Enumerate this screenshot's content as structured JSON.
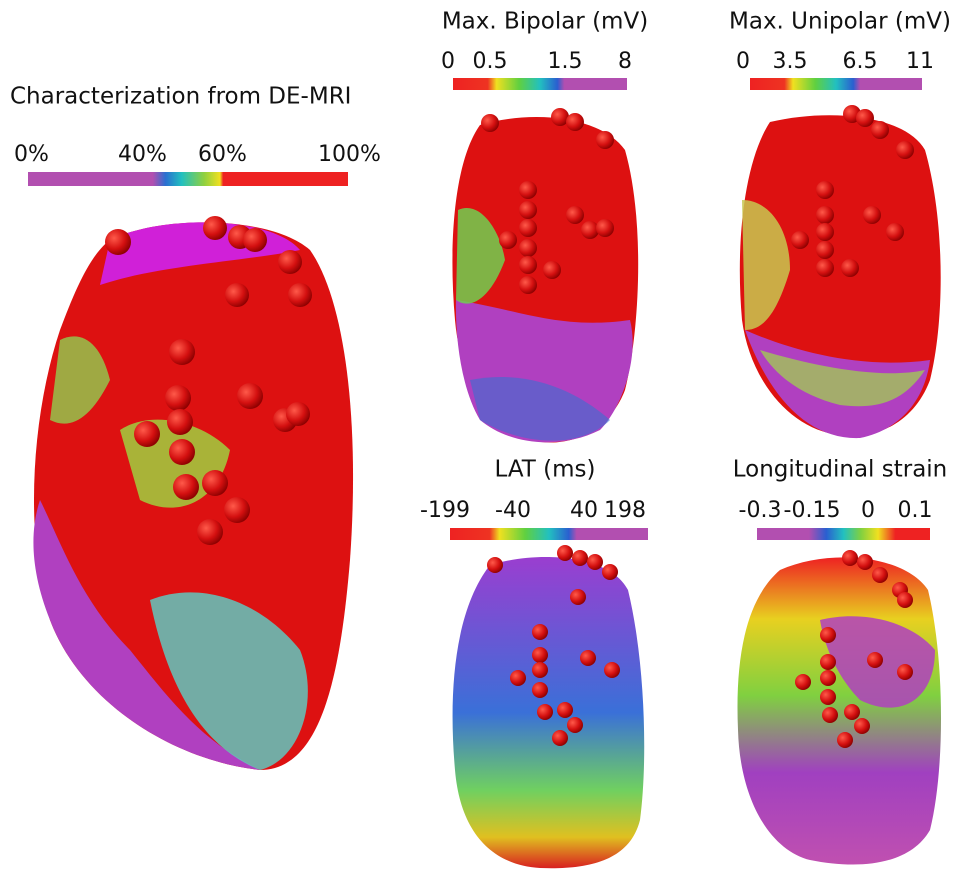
{
  "panels": [
    {
      "title": "Characterization from DE-MRI",
      "ticks": [
        "0%",
        "40%",
        "60%",
        "100%"
      ]
    },
    {
      "title": "Max. Bipolar (mV)",
      "ticks": [
        "0",
        "0.5",
        "1.5",
        "8"
      ]
    },
    {
      "title": "Max. Unipolar (mV)",
      "ticks": [
        "0",
        "3.5",
        "6.5",
        "11"
      ]
    },
    {
      "title": "LAT (ms)",
      "ticks": [
        "-199",
        "-40",
        "40",
        "198"
      ]
    },
    {
      "title": "Longitudinal strain",
      "ticks": [
        "-0.3",
        "-0.15",
        "0",
        "0.1"
      ]
    }
  ]
}
